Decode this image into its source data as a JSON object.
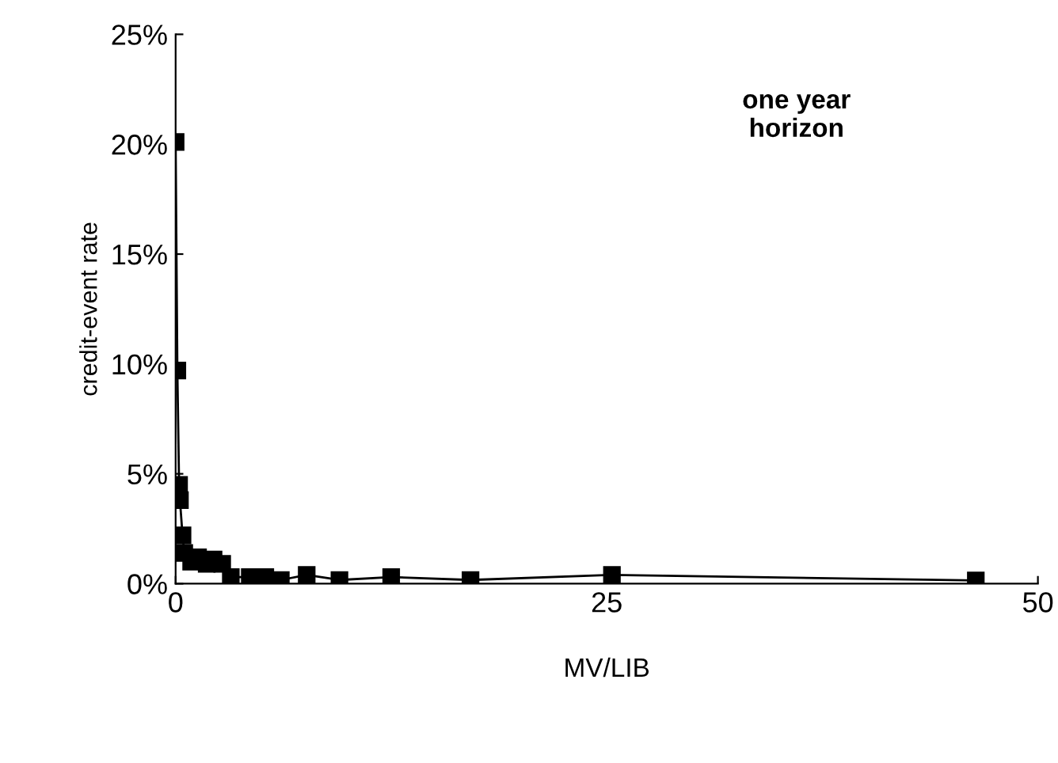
{
  "chart_data": {
    "type": "line",
    "xlabel": "MV/LIB",
    "ylabel": "credit-event rate",
    "annotations": [
      "one year\nhorizon"
    ],
    "x": [
      0.0,
      0.1,
      0.2,
      0.25,
      0.4,
      0.5,
      0.9,
      1.3,
      1.8,
      2.2,
      2.7,
      3.2,
      4.3,
      5.2,
      6.1,
      7.6,
      9.5,
      12.5,
      17.1,
      25.3,
      46.4
    ],
    "series": [
      {
        "color": "#000000",
        "values": [
          20.1,
          9.7,
          4.5,
          3.8,
          2.2,
          1.4,
          1.0,
          1.2,
          0.9,
          1.1,
          0.9,
          0.3,
          0.3,
          0.3,
          0.17,
          0.4,
          0.17,
          0.3,
          0.17,
          0.4,
          0.15
        ]
      }
    ],
    "xlim": [
      0,
      50
    ],
    "xticks": [
      0,
      25,
      50
    ],
    "ylim": [
      0,
      25
    ],
    "yticks": [
      {
        "value": 0,
        "label": "0%"
      },
      {
        "value": 5,
        "label": "5%"
      },
      {
        "value": 10,
        "label": "10%"
      },
      {
        "value": 15,
        "label": "15%"
      },
      {
        "value": 20,
        "label": "20%"
      },
      {
        "value": 25,
        "label": "25%"
      }
    ],
    "grid": false,
    "legend": false,
    "marker": "square",
    "line_style": "solid"
  }
}
